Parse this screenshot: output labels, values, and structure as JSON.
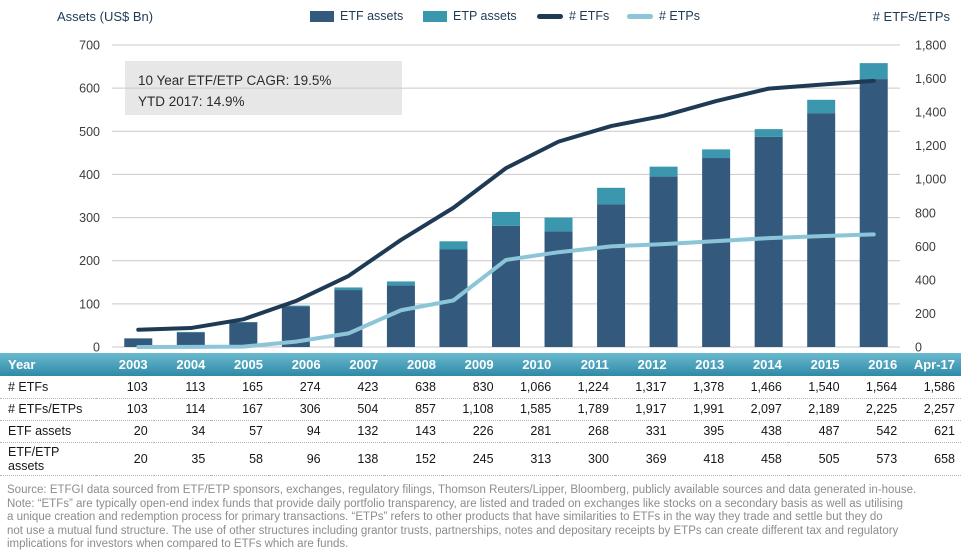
{
  "legend": {
    "items": [
      {
        "label": "ETF assets",
        "type": "bar",
        "color": "#33597c"
      },
      {
        "label": "ETP assets",
        "type": "bar",
        "color": "#3b97ad"
      },
      {
        "label": "# ETFs",
        "type": "line",
        "color": "#1f3a54"
      },
      {
        "label": "# ETPs",
        "type": "line",
        "color": "#8cc5d7"
      }
    ]
  },
  "chart_data": {
    "type": "combo-stacked-bar-line",
    "categories": [
      "2003",
      "2004",
      "2005",
      "2006",
      "2007",
      "2008",
      "2009",
      "2010",
      "2011",
      "2012",
      "2013",
      "2014",
      "2015",
      "2016",
      "Apr-17"
    ],
    "bar_series": [
      {
        "name": "ETF assets",
        "color": "#33597c",
        "axis": "left",
        "values": [
          20,
          34,
          57,
          94,
          132,
          143,
          226,
          281,
          268,
          331,
          395,
          438,
          487,
          542,
          621
        ]
      },
      {
        "name": "ETP assets",
        "color": "#3b97ad",
        "axis": "left",
        "values": [
          0,
          1,
          1,
          2,
          6,
          9,
          19,
          32,
          32,
          38,
          23,
          20,
          18,
          31,
          37
        ]
      }
    ],
    "line_series": [
      {
        "name": "# ETFs",
        "color": "#1f3a54",
        "axis": "right",
        "values": [
          103,
          113,
          165,
          274,
          423,
          638,
          830,
          1066,
          1224,
          1317,
          1378,
          1466,
          1540,
          1564,
          1586
        ]
      },
      {
        "name": "# ETPs",
        "color": "#8cc5d7",
        "axis": "right",
        "values": [
          0,
          1,
          2,
          32,
          81,
          219,
          278,
          519,
          565,
          600,
          613,
          631,
          649,
          661,
          671
        ]
      }
    ],
    "left_axis": {
      "title": "Assets (US$ Bn)",
      "min": 0,
      "max": 700,
      "step": 100,
      "ticks": [
        "700",
        "600",
        "500",
        "400",
        "300",
        "200",
        "100",
        "0"
      ]
    },
    "right_axis": {
      "title": "# ETFs/ETPs",
      "min": 0,
      "max": 1800,
      "step": 200,
      "ticks": [
        "1,800",
        "1,600",
        "1,400",
        "1,200",
        "1,000",
        "800",
        "600",
        "400",
        "200",
        "0"
      ]
    },
    "annotation": {
      "line1": "10 Year ETF/ETP CAGR: 19.5%",
      "line2": "YTD 2017: 14.9%"
    },
    "grid": "horizontal",
    "legend_position": "top"
  },
  "table": {
    "header": [
      "Year",
      "2003",
      "2004",
      "2005",
      "2006",
      "2007",
      "2008",
      "2009",
      "2010",
      "2011",
      "2012",
      "2013",
      "2014",
      "2015",
      "2016",
      "Apr-17"
    ],
    "rows": [
      {
        "label": "# ETFs",
        "values": [
          "103",
          "113",
          "165",
          "274",
          "423",
          "638",
          "830",
          "1,066",
          "1,224",
          "1,317",
          "1,378",
          "1,466",
          "1,540",
          "1,564",
          "1,586"
        ]
      },
      {
        "label": "# ETFs/ETPs",
        "values": [
          "103",
          "114",
          "167",
          "306",
          "504",
          "857",
          "1,108",
          "1,585",
          "1,789",
          "1,917",
          "1,991",
          "2,097",
          "2,189",
          "2,225",
          "2,257"
        ]
      },
      {
        "label": "ETF assets",
        "values": [
          "20",
          "34",
          "57",
          "94",
          "132",
          "143",
          "226",
          "281",
          "268",
          "331",
          "395",
          "438",
          "487",
          "542",
          "621"
        ]
      },
      {
        "label": "ETF/ETP assets",
        "values": [
          "20",
          "35",
          "58",
          "96",
          "138",
          "152",
          "245",
          "313",
          "300",
          "369",
          "418",
          "458",
          "505",
          "573",
          "658"
        ]
      }
    ]
  },
  "footnote": {
    "lines": [
      "Source: ETFGI data sourced from ETF/ETP sponsors, exchanges, regulatory filings, Thomson Reuters/Lipper, Bloomberg, publicly available sources and data generated in-house.",
      "Note: “ETFs” are typically open-end index funds that provide daily portfolio transparency, are listed and traded on exchanges like stocks on a secondary basis as well as utilising",
      "a unique creation and redemption process for primary transactions. “ETPs” refers to other products that have similarities to ETFs in the way they trade and settle but they do",
      "not use a mutual fund structure. The use of other structures including grantor trusts, partnerships, notes and depositary receipts by ETPs can create different tax and regulatory",
      "implications for investors when compared to ETFs which are funds."
    ]
  },
  "colors": {
    "etf_bar": "#33597c",
    "etp_bar": "#3b97ad",
    "etf_line": "#1f3a54",
    "etp_line": "#8cc5d7",
    "gridline": "#c9c9c9",
    "annotation_bg": "#e7e7e7",
    "table_header_top": "#6ab9ce",
    "table_header_bottom": "#2e8aa8",
    "footnote_text": "#8c8c8c"
  }
}
